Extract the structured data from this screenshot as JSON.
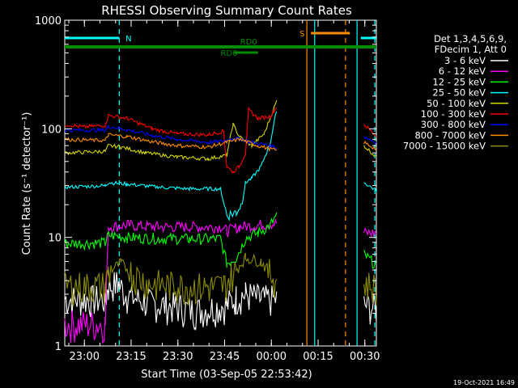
{
  "chart_data": {
    "type": "line",
    "title": "RHESSI Observing Summary Count Rates",
    "xlabel": "Start Time (03-Sep-05 22:53:42)",
    "ylabel": "Count Rate (s⁻¹ detector⁻¹)",
    "y_scale": "log",
    "ylim": [
      1,
      1000
    ],
    "xlim_minutes": [
      0,
      100
    ],
    "x_ticks": [
      {
        "label": "23:00",
        "t": 6.3
      },
      {
        "label": "23:15",
        "t": 21.3
      },
      {
        "label": "23:30",
        "t": 36.3
      },
      {
        "label": "23:45",
        "t": 51.3
      },
      {
        "label": "00:00",
        "t": 66.3
      },
      {
        "label": "00:15",
        "t": 81.3
      },
      {
        "label": "00:30",
        "t": 96.3
      }
    ],
    "y_ticks": [
      {
        "label": "1",
        "v": 1
      },
      {
        "label": "10",
        "v": 10
      },
      {
        "label": "100",
        "v": 100
      },
      {
        "label": "1000",
        "v": 1000
      }
    ],
    "legend_header": [
      "Det 1,3,4,5,6,9,",
      "FDecim 1, Att 0"
    ],
    "legend_position": "right",
    "series": [
      {
        "name": "3 - 6 keV",
        "color": "#ffffff",
        "points": [
          [
            0,
            2.7
          ],
          [
            13,
            2.7
          ],
          [
            14,
            3.5
          ],
          [
            17,
            3.8
          ],
          [
            20,
            2.9
          ],
          [
            27,
            2.5
          ],
          [
            36,
            2.3
          ],
          [
            42,
            2.1
          ],
          [
            52,
            2.4
          ],
          [
            55,
            2.8
          ],
          [
            58,
            3.0
          ],
          [
            63,
            2.7
          ],
          [
            68,
            2.7
          ],
          [
            69,
            null
          ],
          [
            95,
            null
          ],
          [
            96,
            2.4
          ],
          [
            100,
            2.2
          ]
        ]
      },
      {
        "name": "6 - 12 keV",
        "color": "#ff00ff",
        "points": [
          [
            0,
            1.6
          ],
          [
            13,
            1.6
          ],
          [
            14,
            12.5
          ],
          [
            20,
            13.0
          ],
          [
            30,
            12.5
          ],
          [
            40,
            12.5
          ],
          [
            50,
            12.5
          ],
          [
            52,
            11.5
          ],
          [
            56,
            12.5
          ],
          [
            62,
            13.0
          ],
          [
            68,
            13.5
          ],
          [
            69,
            null
          ],
          [
            95,
            null
          ],
          [
            96,
            11.0
          ],
          [
            100,
            11.0
          ]
        ]
      },
      {
        "name": "12 - 25 keV",
        "color": "#00ff00",
        "points": [
          [
            0,
            8.8
          ],
          [
            13,
            8.9
          ],
          [
            14,
            10.5
          ],
          [
            20,
            10.0
          ],
          [
            30,
            9.8
          ],
          [
            40,
            9.7
          ],
          [
            50,
            9.7
          ],
          [
            52,
            5.8
          ],
          [
            55,
            6.5
          ],
          [
            58,
            9.8
          ],
          [
            62,
            11.0
          ],
          [
            66,
            13.0
          ],
          [
            68,
            16.0
          ],
          [
            69,
            null
          ],
          [
            95,
            null
          ],
          [
            96,
            7.0
          ],
          [
            100,
            5.5
          ]
        ]
      },
      {
        "name": "25 - 50 keV",
        "color": "#00ffff",
        "points": [
          [
            0,
            29
          ],
          [
            13,
            30
          ],
          [
            14,
            32
          ],
          [
            20,
            31
          ],
          [
            30,
            29
          ],
          [
            40,
            28
          ],
          [
            50,
            28
          ],
          [
            52,
            16
          ],
          [
            55,
            17
          ],
          [
            57,
            21
          ],
          [
            58,
            32
          ],
          [
            60,
            35
          ],
          [
            63,
            45
          ],
          [
            66,
            75
          ],
          [
            68,
            150
          ],
          [
            69,
            null
          ],
          [
            95,
            null
          ],
          [
            96,
            32
          ],
          [
            100,
            27
          ]
        ]
      },
      {
        "name": "50 - 100 keV",
        "color": "#d4d400",
        "points": [
          [
            0,
            60
          ],
          [
            13,
            62
          ],
          [
            14,
            70
          ],
          [
            18,
            68
          ],
          [
            26,
            60
          ],
          [
            36,
            55
          ],
          [
            46,
            53
          ],
          [
            52,
            57
          ],
          [
            54,
            110
          ],
          [
            56,
            85
          ],
          [
            60,
            70
          ],
          [
            64,
            90
          ],
          [
            68,
            180
          ],
          [
            69,
            null
          ],
          [
            95,
            null
          ],
          [
            96,
            70
          ],
          [
            100,
            55
          ]
        ]
      },
      {
        "name": "100 - 300 keV",
        "color": "#ff0000",
        "points": [
          [
            0,
            110
          ],
          [
            6,
            104
          ],
          [
            13,
            108
          ],
          [
            14,
            133
          ],
          [
            20,
            125
          ],
          [
            28,
            100
          ],
          [
            36,
            90
          ],
          [
            46,
            88
          ],
          [
            51,
            95
          ],
          [
            52,
            45
          ],
          [
            54,
            40
          ],
          [
            56,
            45
          ],
          [
            58,
            60
          ],
          [
            59,
            150
          ],
          [
            62,
            125
          ],
          [
            66,
            130
          ],
          [
            68,
            160
          ],
          [
            69,
            null
          ],
          [
            95,
            null
          ],
          [
            96,
            110
          ],
          [
            100,
            85
          ]
        ]
      },
      {
        "name": "300 - 800 keV",
        "color": "#0000ff",
        "points": [
          [
            0,
            97
          ],
          [
            13,
            97
          ],
          [
            14,
            105
          ],
          [
            20,
            98
          ],
          [
            28,
            87
          ],
          [
            36,
            80
          ],
          [
            46,
            75
          ],
          [
            51,
            77
          ],
          [
            54,
            82
          ],
          [
            57,
            80
          ],
          [
            60,
            75
          ],
          [
            66,
            70
          ],
          [
            68,
            68
          ],
          [
            69,
            null
          ],
          [
            95,
            null
          ],
          [
            96,
            85
          ],
          [
            100,
            75
          ]
        ]
      },
      {
        "name": "800 - 7000 keV",
        "color": "#ff8c00",
        "points": [
          [
            0,
            80
          ],
          [
            13,
            78
          ],
          [
            14,
            88
          ],
          [
            20,
            85
          ],
          [
            28,
            76
          ],
          [
            36,
            70
          ],
          [
            46,
            68
          ],
          [
            52,
            75
          ],
          [
            56,
            80
          ],
          [
            62,
            70
          ],
          [
            68,
            63
          ],
          [
            69,
            null
          ],
          [
            95,
            null
          ],
          [
            96,
            75
          ],
          [
            100,
            65
          ]
        ]
      },
      {
        "name": "7000 - 15000 keV",
        "color": "#8b8b00",
        "points": [
          [
            0,
            3.6
          ],
          [
            13,
            3.6
          ],
          [
            14,
            4.8
          ],
          [
            18,
            5.8
          ],
          [
            22,
            4.6
          ],
          [
            27,
            3.8
          ],
          [
            36,
            3.6
          ],
          [
            46,
            3.5
          ],
          [
            51,
            3.6
          ],
          [
            55,
            5.0
          ],
          [
            58,
            6.5
          ],
          [
            63,
            6.0
          ],
          [
            68,
            4.0
          ],
          [
            69,
            null
          ],
          [
            95,
            null
          ],
          [
            96,
            3.8
          ],
          [
            100,
            3.5
          ]
        ]
      }
    ],
    "vertical_lines": [
      {
        "t": 17.5,
        "color": "#00ffff",
        "style": "dashed"
      },
      {
        "t": 80.2,
        "color": "#00ffff",
        "style": "solid"
      },
      {
        "t": 93.8,
        "color": "#00ffff",
        "style": "solid"
      },
      {
        "t": 99.5,
        "color": "#00ffff",
        "style": "dashed"
      },
      {
        "t": 77.7,
        "color": "#ff8c00",
        "style": "solid"
      },
      {
        "t": 90.1,
        "color": "#ff8c00",
        "style": "dashed"
      }
    ],
    "flag_bars": [
      {
        "label": "N",
        "color": "#00ffff",
        "segments": [
          [
            0,
            17.5
          ],
          [
            95,
            100
          ]
        ],
        "label_t": 19.5,
        "label_side": "right"
      },
      {
        "label": "S",
        "color": "#ff8c00",
        "segments": [
          [
            79,
            91.5
          ]
        ],
        "label_t": 77,
        "label_side": "left"
      },
      {
        "label": "RD0",
        "color": "#008c00",
        "segments": [
          [
            0,
            100
          ]
        ],
        "label_t": 59,
        "label_side": "above"
      },
      {
        "label": "RD6",
        "color": "#008c00",
        "segments": [
          [
            54.5,
            62
          ]
        ],
        "label_t": 50,
        "label_side": "below-left"
      }
    ]
  },
  "footer": {
    "date": "19-Oct-2021 16:49"
  },
  "colors": {
    "background": "#000000",
    "axes": "#ffffff"
  }
}
